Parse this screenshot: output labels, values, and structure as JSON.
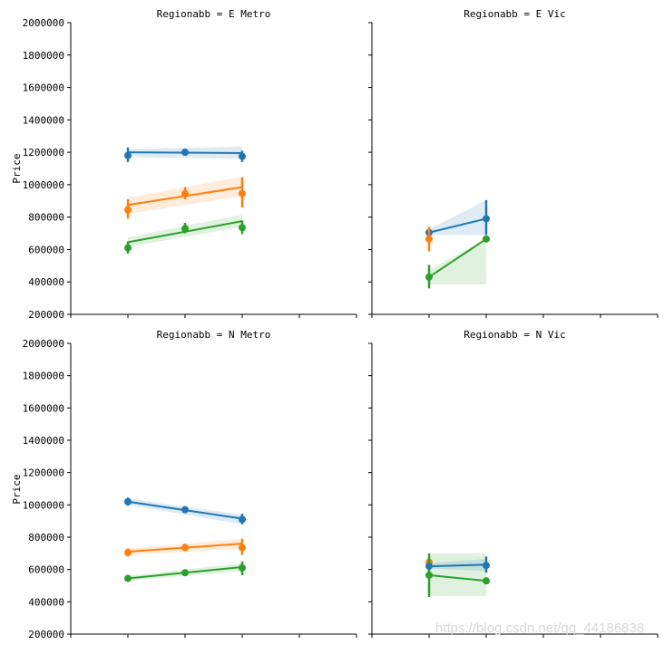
{
  "chart_data": {
    "type": "line",
    "ylabel": "Price",
    "ylim": [
      200000,
      2000000
    ],
    "yticks": [
      "200000",
      "400000",
      "600000",
      "800000",
      "1000000",
      "1200000",
      "1400000",
      "1600000",
      "1800000",
      "2000000"
    ],
    "x_positions": [
      0,
      1,
      2,
      3,
      4,
      5
    ],
    "colors": {
      "s1": "#1f77b4",
      "s2": "#ff7f0e",
      "s3": "#2ca02c"
    },
    "panels": [
      {
        "title": "Regionabb = E Metro",
        "series": [
          {
            "name": "s1",
            "color": "#1f77b4",
            "points": [
              [
                1,
                1180000,
                1140000,
                1230000
              ],
              [
                2,
                1200000,
                1180000,
                1220000
              ],
              [
                3,
                1175000,
                1140000,
                1210000
              ]
            ],
            "fit": [
              [
                1,
                1200000
              ],
              [
                3,
                1195000
              ]
            ],
            "band_lo": [
              1170000,
              1160000
            ],
            "band_hi": [
              1220000,
              1235000
            ]
          },
          {
            "name": "s2",
            "color": "#ff7f0e",
            "points": [
              [
                1,
                845000,
                790000,
                910000
              ],
              [
                2,
                945000,
                910000,
                985000
              ],
              [
                3,
                945000,
                860000,
                1045000
              ]
            ],
            "fit": [
              [
                1,
                875000
              ],
              [
                3,
                985000
              ]
            ],
            "band_lo": [
              820000,
              930000
            ],
            "band_hi": [
              920000,
              1050000
            ]
          },
          {
            "name": "s3",
            "color": "#2ca02c",
            "points": [
              [
                1,
                610000,
                575000,
                650000
              ],
              [
                2,
                730000,
                700000,
                765000
              ],
              [
                3,
                735000,
                695000,
                780000
              ]
            ],
            "fit": [
              [
                1,
                645000
              ],
              [
                3,
                775000
              ]
            ],
            "band_lo": [
              615000,
              740000
            ],
            "band_hi": [
              675000,
              815000
            ]
          }
        ]
      },
      {
        "title": "Regionabb = E Vic",
        "series": [
          {
            "name": "s1",
            "color": "#1f77b4",
            "points": [
              [
                1,
                705000,
                690000,
                720000
              ],
              [
                2,
                790000,
                690000,
                905000
              ]
            ],
            "fit": [
              [
                1,
                705000
              ],
              [
                2,
                790000
              ]
            ],
            "band_lo": [
              690000,
              690000
            ],
            "band_hi": [
              725000,
              905000
            ]
          },
          {
            "name": "s2",
            "color": "#ff7f0e",
            "points": [
              [
                1,
                665000,
                590000,
                740000
              ]
            ],
            "fit": [],
            "band_lo": [],
            "band_hi": []
          },
          {
            "name": "s3",
            "color": "#2ca02c",
            "points": [
              [
                1,
                430000,
                360000,
                505000
              ],
              [
                2,
                665000,
                665000,
                665000
              ]
            ],
            "fit": [
              [
                1,
                430000
              ],
              [
                2,
                665000
              ]
            ],
            "band_lo": [
              385000,
              385000
            ],
            "band_hi": [
              475000,
              665000
            ]
          }
        ]
      },
      {
        "title": "Regionabb = N Metro",
        "series": [
          {
            "name": "s1",
            "color": "#1f77b4",
            "points": [
              [
                1,
                1020000,
                995000,
                1045000
              ],
              [
                2,
                970000,
                955000,
                985000
              ],
              [
                3,
                910000,
                880000,
                945000
              ]
            ],
            "fit": [
              [
                1,
                1020000
              ],
              [
                3,
                915000
              ]
            ],
            "band_lo": [
              1000000,
              880000
            ],
            "band_hi": [
              1040000,
              940000
            ]
          },
          {
            "name": "s2",
            "color": "#ff7f0e",
            "points": [
              [
                1,
                705000,
                680000,
                730000
              ],
              [
                2,
                735000,
                715000,
                760000
              ],
              [
                3,
                735000,
                690000,
                790000
              ]
            ],
            "fit": [
              [
                1,
                710000
              ],
              [
                3,
                760000
              ]
            ],
            "band_lo": [
              690000,
              730000
            ],
            "band_hi": [
              730000,
              790000
            ]
          },
          {
            "name": "s3",
            "color": "#2ca02c",
            "points": [
              [
                1,
                545000,
                530000,
                560000
              ],
              [
                2,
                580000,
                565000,
                600000
              ],
              [
                3,
                610000,
                565000,
                650000
              ]
            ],
            "fit": [
              [
                1,
                545000
              ],
              [
                3,
                615000
              ]
            ],
            "band_lo": [
              530000,
              590000
            ],
            "band_hi": [
              560000,
              640000
            ]
          }
        ]
      },
      {
        "title": "Regionabb = N Vic",
        "series": [
          {
            "name": "s2",
            "color": "#ff7f0e",
            "points": [
              [
                1,
                645000,
                620000,
                670000
              ]
            ],
            "fit": [],
            "band_lo": [],
            "band_hi": []
          },
          {
            "name": "s3",
            "color": "#2ca02c",
            "points": [
              [
                1,
                565000,
                430000,
                700000
              ],
              [
                2,
                530000,
                525000,
                535000
              ]
            ],
            "fit": [
              [
                1,
                565000
              ],
              [
                2,
                530000
              ]
            ],
            "band_lo": [
              435000,
              435000
            ],
            "band_hi": [
              700000,
              700000
            ]
          },
          {
            "name": "s1",
            "color": "#1f77b4",
            "points": [
              [
                1,
                620000,
                600000,
                640000
              ],
              [
                2,
                625000,
                580000,
                680000
              ]
            ],
            "fit": [
              [
                1,
                620000
              ],
              [
                2,
                630000
              ]
            ],
            "band_lo": [
              605000,
              590000
            ],
            "band_hi": [
              640000,
              665000
            ]
          }
        ]
      }
    ]
  },
  "watermark": "https://blog.csdn.net/qq_44186838"
}
